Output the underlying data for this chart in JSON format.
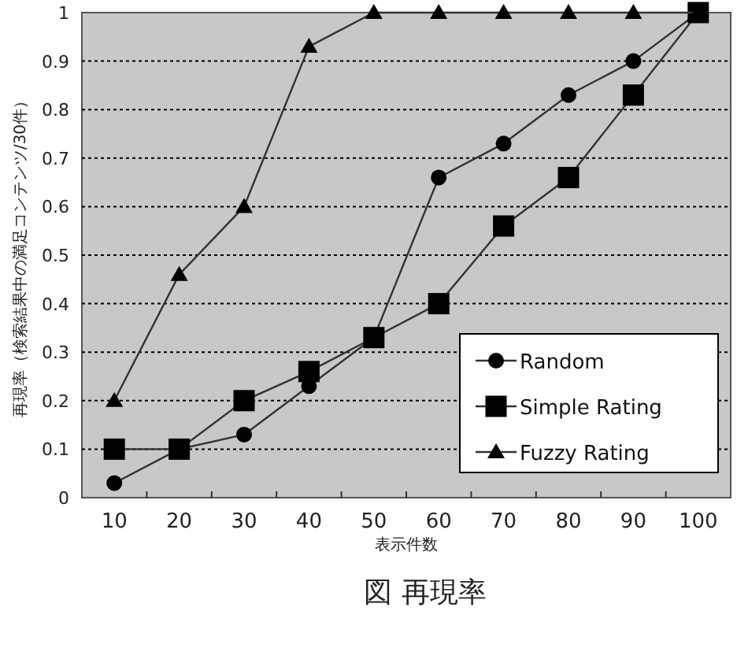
{
  "chart_data": {
    "type": "line",
    "title": "図 再現率",
    "xlabel": "表示件数",
    "ylabel": "再現率（検索結果中の満足コンテンツ/30件）",
    "categories": [
      "10",
      "20",
      "30",
      "40",
      "50",
      "60",
      "70",
      "80",
      "90",
      "100"
    ],
    "ylim": [
      0,
      1
    ],
    "yticks": [
      0,
      0.1,
      0.2,
      0.3,
      0.4,
      0.5,
      0.6,
      0.7,
      0.8,
      0.9,
      1
    ],
    "grid": "y",
    "legend": "bottom right",
    "series": [
      {
        "name": "Random",
        "color": "#000000",
        "marker": "circle",
        "values": [
          0.03,
          0.1,
          0.13,
          0.23,
          0.33,
          0.66,
          0.73,
          0.83,
          0.9,
          1
        ]
      },
      {
        "name": "Simple Rating",
        "color": "#000000",
        "marker": "square",
        "values": [
          0.1,
          0.1,
          0.2,
          0.26,
          0.33,
          0.4,
          0.56,
          0.66,
          0.83,
          1
        ]
      },
      {
        "name": "Fuzzy Rating",
        "color": "#000000",
        "marker": "triangle",
        "values": [
          0.2,
          0.46,
          0.6,
          0.93,
          1,
          1,
          1,
          1,
          1,
          1
        ]
      }
    ]
  }
}
